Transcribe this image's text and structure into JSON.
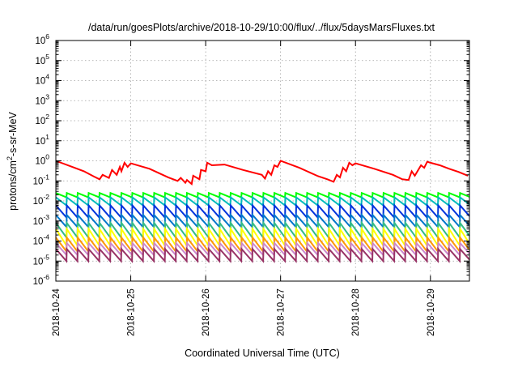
{
  "chart_data": {
    "type": "line",
    "title": "/data/run/goesPlots/archive/2018-10-29/10:00/flux/../flux/5daysMarsFluxes.txt",
    "xlabel": "Coordinated Universal Time (UTC)",
    "ylabel": {
      "pre": "protons/cm",
      "sup": "2",
      "post": "-s-sr-MeV"
    },
    "x_type": "date",
    "xlim": [
      "2018-10-24T00:00",
      "2018-10-29T12:30"
    ],
    "x_ticks": [
      "2018-10-24",
      "2018-10-25",
      "2018-10-26",
      "2018-10-27",
      "2018-10-28",
      "2018-10-29"
    ],
    "y_scale": "log",
    "ylim": [
      1e-06,
      1000000.0
    ],
    "y_ticks": [
      {
        "base": "10",
        "exp": "6"
      },
      {
        "base": "10",
        "exp": "5"
      },
      {
        "base": "10",
        "exp": "4"
      },
      {
        "base": "10",
        "exp": "3"
      },
      {
        "base": "10",
        "exp": "2"
      },
      {
        "base": "10",
        "exp": "1"
      },
      {
        "base": "10",
        "exp": "0"
      },
      {
        "base": "10",
        "exp": "-1"
      },
      {
        "base": "10",
        "exp": "-2"
      },
      {
        "base": "10",
        "exp": "-3"
      },
      {
        "base": "10",
        "exp": "-4"
      },
      {
        "base": "10",
        "exp": "-5"
      },
      {
        "base": "10",
        "exp": "-6"
      }
    ],
    "grid": true,
    "legend": "none",
    "series": [
      {
        "color": "#ff0000",
        "x": [
          "2018-10-24T00:00",
          "2018-10-24T06:00",
          "2018-10-24T09:00",
          "2018-10-24T12:00",
          "2018-10-24T14:00",
          "2018-10-24T15:00",
          "2018-10-24T17:00",
          "2018-10-24T18:00",
          "2018-10-24T19:30",
          "2018-10-24T20:30",
          "2018-10-24T21:00",
          "2018-10-24T22:00",
          "2018-10-24T23:00",
          "2018-10-25T00:00",
          "2018-10-25T06:00",
          "2018-10-25T12:00",
          "2018-10-25T15:00",
          "2018-10-25T16:00",
          "2018-10-25T17:30",
          "2018-10-25T18:00",
          "2018-10-25T19:30",
          "2018-10-25T20:00",
          "2018-10-25T22:00",
          "2018-10-25T22:30",
          "2018-10-26T00:00",
          "2018-10-26T00:30",
          "2018-10-26T02:00",
          "2018-10-26T06:00",
          "2018-10-26T12:00",
          "2018-10-26T18:00",
          "2018-10-26T19:00",
          "2018-10-26T20:00",
          "2018-10-26T21:00",
          "2018-10-26T22:00",
          "2018-10-26T23:00",
          "2018-10-27T00:00",
          "2018-10-27T06:00",
          "2018-10-27T12:00",
          "2018-10-27T15:00",
          "2018-10-27T17:00",
          "2018-10-27T18:00",
          "2018-10-27T19:00",
          "2018-10-27T20:00",
          "2018-10-27T21:00",
          "2018-10-27T22:00",
          "2018-10-27T23:00",
          "2018-10-28T00:00",
          "2018-10-28T06:00",
          "2018-10-28T12:00",
          "2018-10-28T15:00",
          "2018-10-28T17:00",
          "2018-10-28T18:00",
          "2018-10-28T19:00",
          "2018-10-28T21:00",
          "2018-10-28T22:00",
          "2018-10-28T23:00",
          "2018-10-29T00:00",
          "2018-10-29T03:00",
          "2018-10-29T06:00",
          "2018-10-29T09:00",
          "2018-10-29T12:00"
        ],
        "y": [
          1.0,
          0.45,
          0.3,
          0.17,
          0.12,
          0.2,
          0.14,
          0.35,
          0.2,
          0.5,
          0.3,
          0.8,
          0.5,
          0.75,
          0.4,
          0.15,
          0.1,
          0.14,
          0.08,
          0.11,
          0.07,
          0.18,
          0.12,
          0.35,
          0.3,
          0.8,
          0.6,
          0.65,
          0.35,
          0.2,
          0.13,
          0.3,
          0.2,
          0.6,
          0.5,
          1.0,
          0.45,
          0.17,
          0.12,
          0.09,
          0.2,
          0.15,
          0.45,
          0.3,
          0.8,
          0.6,
          0.75,
          0.4,
          0.2,
          0.12,
          0.11,
          0.3,
          0.18,
          0.6,
          0.45,
          0.9,
          0.8,
          0.6,
          0.4,
          0.28,
          0.18
        ]
      },
      {
        "color": "#00ff00",
        "peak": 0.025,
        "trough": 0.015
      },
      {
        "color": "#00bbbb",
        "peak": 0.015,
        "trough": 0.006
      },
      {
        "color": "#0033dd",
        "peak": 0.006,
        "trough": 0.0015
      },
      {
        "color": "#0077cc",
        "peak": 0.002,
        "trough": 0.0005
      },
      {
        "color": "#33bb88",
        "peak": 0.0008,
        "trough": 0.00015
      },
      {
        "color": "#ffff00",
        "peak": 0.0004,
        "trough": 6e-05
      },
      {
        "color": "#ff9900",
        "peak": 0.00015,
        "trough": 3e-05
      },
      {
        "color": "#cc88cc",
        "peak": 8e-05,
        "trough": 2e-05
      },
      {
        "color": "#993366",
        "peak": 4e-05,
        "trough": 1e-05
      }
    ],
    "cycle_hours": 3.5
  }
}
